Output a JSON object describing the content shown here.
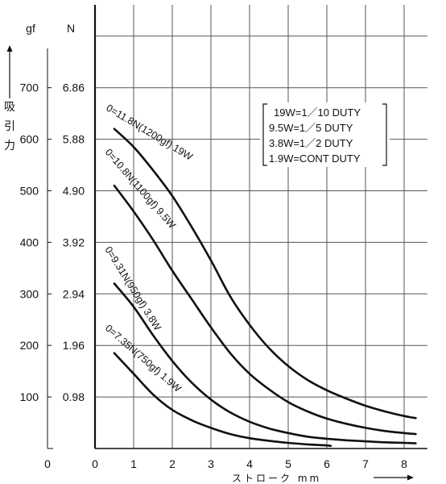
{
  "chart_data": {
    "type": "line",
    "xlabel": "ストローク mm",
    "ylabel": "吸引力",
    "xlim": [
      0,
      8.6
    ],
    "ylim": [
      0,
      8.6
    ],
    "grid": true,
    "x_ticks": [
      "0",
      "1",
      "2",
      "3",
      "4",
      "5",
      "6",
      "7",
      "8"
    ],
    "left_axis_zero": "0",
    "y_unit_gf": "gf",
    "y_unit_N": "N",
    "y_ticks_gf": [
      "100",
      "200",
      "300",
      "400",
      "500",
      "600",
      "700"
    ],
    "y_ticks_N": [
      "0.98",
      "1.96",
      "2.94",
      "3.92",
      "4.90",
      "5.88",
      "6.86"
    ],
    "legend": [
      "19W=1／10 DUTY",
      "9.5W=1／5 DUTY",
      "3.8W=1／2 DUTY",
      "1.9W=CONT DUTY"
    ],
    "series": [
      {
        "name": "0=11.8N(1200gf) 19W",
        "points": [
          [
            0.5,
            6.2
          ],
          [
            1,
            5.85
          ],
          [
            1.5,
            5.4
          ],
          [
            2,
            4.9
          ],
          [
            2.5,
            4.3
          ],
          [
            3,
            3.65
          ],
          [
            3.5,
            2.95
          ],
          [
            4,
            2.4
          ],
          [
            4.5,
            1.95
          ],
          [
            5,
            1.6
          ],
          [
            5.5,
            1.33
          ],
          [
            6,
            1.13
          ],
          [
            6.5,
            0.97
          ],
          [
            7,
            0.83
          ],
          [
            7.5,
            0.72
          ],
          [
            8,
            0.63
          ],
          [
            8.3,
            0.59
          ]
        ]
      },
      {
        "name": "0=10.8N(1100gf) 9.5W",
        "points": [
          [
            0.5,
            5.1
          ],
          [
            1,
            4.6
          ],
          [
            1.5,
            4.05
          ],
          [
            2,
            3.45
          ],
          [
            2.5,
            2.9
          ],
          [
            3,
            2.35
          ],
          [
            3.5,
            1.85
          ],
          [
            4,
            1.45
          ],
          [
            4.5,
            1.15
          ],
          [
            5,
            0.9
          ],
          [
            5.5,
            0.72
          ],
          [
            6,
            0.58
          ],
          [
            6.5,
            0.48
          ],
          [
            7,
            0.4
          ],
          [
            7.5,
            0.34
          ],
          [
            8,
            0.3
          ],
          [
            8.3,
            0.28
          ]
        ]
      },
      {
        "name": "0=9.31N(950gf) 3.8W",
        "points": [
          [
            0.5,
            3.2
          ],
          [
            1,
            2.75
          ],
          [
            1.5,
            2.2
          ],
          [
            2,
            1.7
          ],
          [
            2.5,
            1.28
          ],
          [
            3,
            0.95
          ],
          [
            3.5,
            0.7
          ],
          [
            4,
            0.52
          ],
          [
            4.5,
            0.39
          ],
          [
            5,
            0.3
          ],
          [
            5.5,
            0.23
          ],
          [
            6,
            0.19
          ],
          [
            6.5,
            0.16
          ],
          [
            7,
            0.14
          ],
          [
            7.5,
            0.12
          ],
          [
            8,
            0.11
          ],
          [
            8.3,
            0.1
          ]
        ]
      },
      {
        "name": "0=7.35N(750gf) 1.9W",
        "points": [
          [
            0.5,
            1.85
          ],
          [
            1,
            1.45
          ],
          [
            1.5,
            1.05
          ],
          [
            2,
            0.75
          ],
          [
            2.5,
            0.55
          ],
          [
            3,
            0.4
          ],
          [
            3.5,
            0.28
          ],
          [
            4,
            0.2
          ],
          [
            4.5,
            0.15
          ],
          [
            5,
            0.11
          ],
          [
            5.5,
            0.08
          ],
          [
            6,
            0.06
          ],
          [
            6.1,
            0.05
          ]
        ]
      }
    ]
  }
}
